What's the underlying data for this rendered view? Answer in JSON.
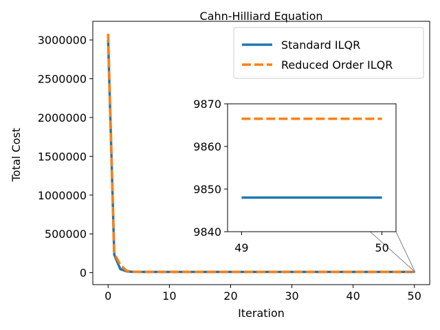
{
  "chart_data": {
    "type": "line",
    "title": "Cahn-Hilliard Equation",
    "xlabel": "Iteration",
    "ylabel": "Total Cost",
    "xlim": [
      -2.5,
      52.5
    ],
    "ylim": [
      -154000,
      3240000
    ],
    "x_ticks": [
      0,
      10,
      20,
      30,
      40,
      50
    ],
    "x_tick_labels": [
      "0",
      "10",
      "20",
      "30",
      "40",
      "50"
    ],
    "y_ticks": [
      0,
      500000,
      1000000,
      1500000,
      2000000,
      2500000,
      3000000
    ],
    "y_tick_labels": [
      "0",
      "500000",
      "1000000",
      "1500000",
      "2000000",
      "2500000",
      "3000000"
    ],
    "grid": false,
    "legend_position": "top-right",
    "series": [
      {
        "name": "Standard ILQR",
        "color": "#1f77b4",
        "linestyle": "solid",
        "x": [
          0,
          1,
          2,
          3,
          4,
          5,
          6,
          7,
          8,
          9,
          10,
          20,
          30,
          40,
          50
        ],
        "values": [
          3000000,
          230000,
          45000,
          18000,
          11000,
          10000,
          9900,
          9870,
          9860,
          9855,
          9852,
          9848,
          9848,
          9848,
          9848
        ]
      },
      {
        "name": "Reduced Order ILQR",
        "color": "#ff7f0e",
        "linestyle": "dashed",
        "x": [
          0,
          1,
          2,
          3,
          4,
          5,
          6,
          7,
          8,
          9,
          10,
          20,
          30,
          40,
          50
        ],
        "values": [
          3080000,
          250000,
          100000,
          25000,
          13000,
          10500,
          10000,
          9900,
          9880,
          9872,
          9870,
          9866,
          9866,
          9866,
          9866
        ]
      }
    ],
    "inset": {
      "xlim": [
        48.9,
        50.1
      ],
      "ylim": [
        9840,
        9870
      ],
      "x_ticks": [
        49,
        50
      ],
      "x_tick_labels": [
        "49",
        "50"
      ],
      "y_ticks": [
        9840,
        9850,
        9860,
        9870
      ],
      "y_tick_labels": [
        "9840",
        "9850",
        "9860",
        "9870"
      ],
      "series": [
        {
          "name": "Standard ILQR",
          "color": "#1f77b4",
          "linestyle": "solid",
          "x": [
            49,
            50
          ],
          "values": [
            9848,
            9848
          ]
        },
        {
          "name": "Reduced Order ILQR",
          "color": "#ff7f0e",
          "linestyle": "dashed",
          "x": [
            49,
            50
          ],
          "values": [
            9866.5,
            9866.5
          ]
        }
      ]
    }
  }
}
